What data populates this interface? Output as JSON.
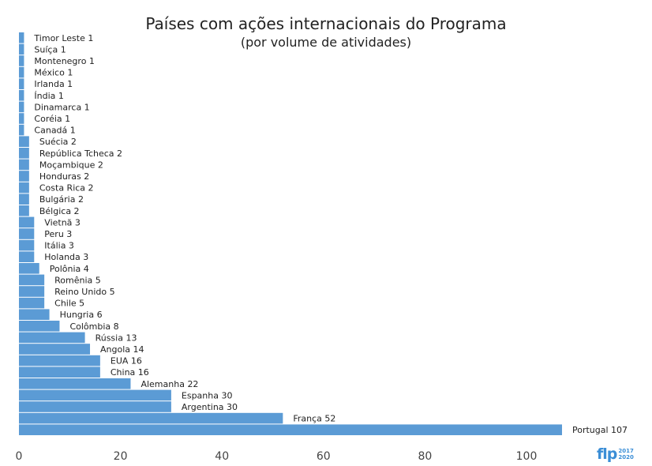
{
  "chart_data": {
    "type": "bar",
    "orientation": "horizontal",
    "title": "Países com ações internacionais do Programa",
    "subtitle": "(por volume de atividades)",
    "categories": [
      "Timor Leste",
      "Suíça",
      "Montenegro",
      "México",
      "Irlanda",
      "Índia",
      "Dinamarca",
      "Coréia",
      "Canadá",
      "Suécia",
      "República Tcheca",
      "Moçambique",
      "Honduras",
      "Costa Rica",
      "Bulgária",
      "Bélgica",
      "Vietnã",
      "Peru",
      "Itália",
      "Holanda",
      "Polônia",
      "Romênia",
      "Reino Unido",
      "Chile",
      "Hungria",
      "Colômbia",
      "Rússia",
      "Angola",
      "EUA",
      "China",
      "Alemanha",
      "Espanha",
      "Argentina",
      "França",
      "Portugal"
    ],
    "values": [
      1,
      1,
      1,
      1,
      1,
      1,
      1,
      1,
      1,
      2,
      2,
      2,
      2,
      2,
      2,
      2,
      3,
      3,
      3,
      3,
      4,
      5,
      5,
      5,
      6,
      8,
      13,
      14,
      16,
      16,
      22,
      30,
      30,
      52,
      107
    ],
    "xlim": [
      0,
      110
    ],
    "xticks": [
      "0",
      "20",
      "40",
      "60",
      "80",
      "100"
    ],
    "bar_color": "#5b9bd5",
    "grid": false,
    "legend": "none"
  },
  "logo": {
    "text": "flp",
    "year_top": "2017",
    "year_bottom": "2020"
  }
}
